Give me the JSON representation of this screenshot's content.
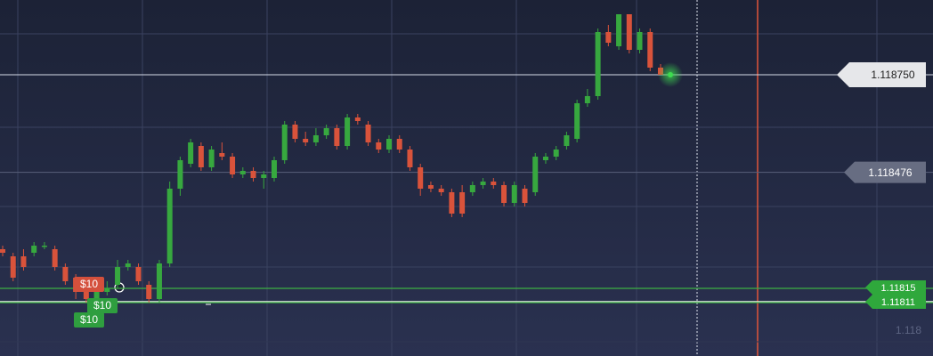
{
  "chart_data": {
    "type": "candlestick",
    "up_color": "#37a83f",
    "down_color": "#d9533b",
    "ylim": [
      1.11796,
      1.11896
    ],
    "yticks": [
      1.118
    ],
    "open": [
      1.11826,
      1.11824,
      1.11824,
      1.11825,
      1.11827,
      1.11826,
      1.11821,
      1.11818,
      1.11814,
      1.11812,
      1.11814,
      1.11816,
      1.11821,
      1.11821,
      1.11816,
      1.11812,
      1.11822,
      1.11843,
      1.1185,
      1.11855,
      1.11849,
      1.11853,
      1.11852,
      1.11847,
      1.11848,
      1.11846,
      1.11846,
      1.11851,
      1.11861,
      1.11857,
      1.11856,
      1.11858,
      1.1186,
      1.11855,
      1.11863,
      1.11861,
      1.11856,
      1.11854,
      1.11857,
      1.11854,
      1.11849,
      1.11844,
      1.11843,
      1.11842,
      1.11842,
      1.11842,
      1.11844,
      1.11845,
      1.11844,
      1.11839,
      1.11843,
      1.11842,
      1.11851,
      1.11852,
      1.11855,
      1.11857,
      1.11867,
      1.11869,
      1.11887,
      1.11883,
      1.11892,
      1.11882,
      1.11887,
      1.11877
    ],
    "high": [
      1.11827,
      1.11825,
      1.11826,
      1.11828,
      1.11828,
      1.11827,
      1.11822,
      1.11819,
      1.11815,
      1.11816,
      1.11817,
      1.11823,
      1.11823,
      1.11822,
      1.11817,
      1.11823,
      1.11845,
      1.11852,
      1.11857,
      1.11856,
      1.11855,
      1.11856,
      1.11853,
      1.11849,
      1.11849,
      1.11848,
      1.11852,
      1.11862,
      1.11862,
      1.11859,
      1.1186,
      1.11861,
      1.11861,
      1.11864,
      1.11864,
      1.11862,
      1.11857,
      1.11858,
      1.11858,
      1.11855,
      1.1185,
      1.11845,
      1.11844,
      1.11843,
      1.11844,
      1.11845,
      1.11846,
      1.11846,
      1.11845,
      1.11845,
      1.11844,
      1.11853,
      1.11853,
      1.11855,
      1.11859,
      1.11868,
      1.11871,
      1.11888,
      1.11889,
      1.11892,
      1.11892,
      1.11888,
      1.11888,
      1.11878
    ],
    "low": [
      1.11824,
      1.11817,
      1.1182,
      1.11824,
      1.11826,
      1.1182,
      1.11816,
      1.11812,
      1.11811,
      1.11811,
      1.11813,
      1.11815,
      1.1182,
      1.11816,
      1.11811,
      1.11811,
      1.11821,
      1.11841,
      1.11849,
      1.11848,
      1.11848,
      1.11851,
      1.11846,
      1.11846,
      1.11845,
      1.11843,
      1.11845,
      1.1185,
      1.11856,
      1.11855,
      1.11855,
      1.11857,
      1.11854,
      1.11854,
      1.11861,
      1.11855,
      1.11853,
      1.11853,
      1.11853,
      1.11848,
      1.11841,
      1.11842,
      1.11841,
      1.11835,
      1.11835,
      1.11841,
      1.11843,
      1.11843,
      1.11838,
      1.11838,
      1.11838,
      1.11841,
      1.1185,
      1.11851,
      1.11854,
      1.11856,
      1.11866,
      1.11868,
      1.11883,
      1.11882,
      1.11881,
      1.11881,
      1.11876,
      1.11875
    ],
    "close": [
      1.11825,
      1.11818,
      1.11821,
      1.11827,
      1.11827,
      1.11821,
      1.11817,
      1.11814,
      1.11812,
      1.11814,
      1.11815,
      1.11821,
      1.11822,
      1.11817,
      1.11812,
      1.11822,
      1.11843,
      1.11851,
      1.11856,
      1.11849,
      1.11854,
      1.11852,
      1.11847,
      1.11848,
      1.11846,
      1.11847,
      1.11851,
      1.11861,
      1.11857,
      1.11856,
      1.11858,
      1.1186,
      1.11855,
      1.11863,
      1.11862,
      1.11856,
      1.11854,
      1.11857,
      1.11854,
      1.11849,
      1.11843,
      1.11843,
      1.11842,
      1.11836,
      1.11836,
      1.11844,
      1.11845,
      1.11844,
      1.11839,
      1.11844,
      1.11839,
      1.11852,
      1.11852,
      1.11854,
      1.11858,
      1.11867,
      1.11869,
      1.11887,
      1.11884,
      1.11892,
      1.11882,
      1.11887,
      1.11877,
      1.11875
    ],
    "current_price": {
      "value": 1.11875,
      "label": "1.118750"
    },
    "marker_price": 1.118476,
    "trade_levels": [
      1.11815,
      1.11811
    ],
    "trades": [
      {
        "amount": "$10",
        "color": "#d4503c"
      },
      {
        "amount": "$10",
        "color": "#2f9e3f"
      },
      {
        "amount": "$10",
        "color": "#2f9e3f"
      }
    ]
  }
}
